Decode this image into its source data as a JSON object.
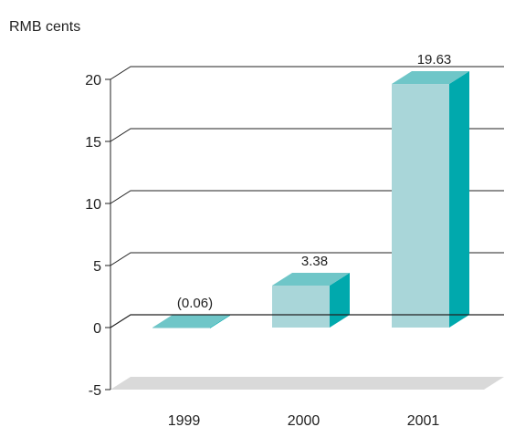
{
  "chart_data": {
    "type": "bar",
    "title": "",
    "xlabel": "",
    "ylabel": "RMB cents",
    "categories": [
      "1999",
      "2000",
      "2001"
    ],
    "values": [
      -0.06,
      3.38,
      19.63
    ],
    "data_labels": [
      "(0.06)",
      "3.38",
      "19.63"
    ],
    "ylim": [
      -5,
      20
    ],
    "yticks": [
      -5,
      0,
      5,
      10,
      15,
      20
    ],
    "ytick_labels": [
      "-5",
      "0",
      "5",
      "10",
      "15",
      "20"
    ],
    "grid": true,
    "style": "3d",
    "colors": {
      "front": "#a9d6d9",
      "top": "#6fc6c8",
      "side": "#00a9ad",
      "floor": "#d9d9d9",
      "axis": "#222222"
    }
  }
}
